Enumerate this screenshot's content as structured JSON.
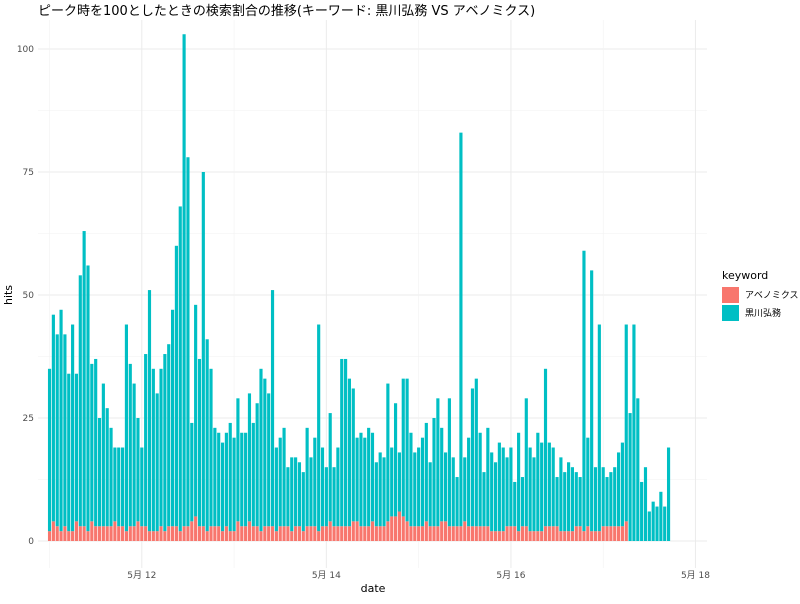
{
  "chart_data": {
    "type": "bar",
    "title": "ピーク時を100としたときの検索割合の推移(キーワード: 黒川弘務 VS アベノミクス)",
    "xlabel": "date",
    "ylabel": "hits",
    "ylim": [
      0,
      100
    ],
    "y_ticks": [
      0,
      25,
      50,
      75,
      100
    ],
    "x_tick_labels": [
      "5月 12",
      "5月 14",
      "5月 16",
      "5月 18"
    ],
    "x_ticks": [
      "2020-05-12",
      "2020-05-14",
      "2020-05-16",
      "2020-05-18"
    ],
    "x_range": [
      "2020-05-10T21:00",
      "2020-05-18T03:00"
    ],
    "grid": true,
    "legend": {
      "title": "keyword",
      "position": "right"
    },
    "bar_interval_hours": 1,
    "first_bar_time": "2020-05-11T00:00",
    "series": [
      {
        "name": "アベノミクス",
        "color": "#F8766D",
        "values": [
          2,
          4,
          3,
          2,
          3,
          2,
          2,
          4,
          3,
          3,
          2,
          4,
          3,
          3,
          3,
          3,
          3,
          4,
          3,
          3,
          2,
          3,
          3,
          4,
          3,
          3,
          2,
          2,
          2,
          3,
          2,
          3,
          3,
          3,
          2,
          3,
          3,
          4,
          5,
          3,
          3,
          2,
          3,
          3,
          3,
          2,
          3,
          2,
          2,
          4,
          3,
          3,
          4,
          3,
          3,
          2,
          3,
          3,
          3,
          2,
          3,
          3,
          3,
          2,
          3,
          3,
          2,
          3,
          3,
          3,
          2,
          3,
          3,
          4,
          3,
          3,
          3,
          3,
          3,
          4,
          4,
          3,
          3,
          3,
          4,
          3,
          3,
          3,
          4,
          5,
          5,
          6,
          5,
          4,
          3,
          3,
          3,
          3,
          4,
          3,
          3,
          3,
          4,
          4,
          3,
          3,
          3,
          3,
          4,
          3,
          3,
          3,
          3,
          3,
          3,
          2,
          2,
          2,
          2,
          3,
          3,
          3,
          2,
          3,
          3,
          2,
          2,
          2,
          2,
          3,
          3,
          3,
          3,
          2,
          2,
          2,
          2,
          3,
          3,
          2,
          3,
          2,
          2,
          2,
          3,
          3,
          3,
          3,
          3,
          3,
          4
        ]
      },
      {
        "name": "黒川弘務",
        "color": "#00BFC4",
        "values": [
          33,
          42,
          39,
          45,
          39,
          32,
          42,
          30,
          51,
          60,
          54,
          32,
          34,
          22,
          29,
          24,
          20,
          15,
          16,
          16,
          42,
          33,
          29,
          21,
          16,
          35,
          49,
          33,
          28,
          32,
          36,
          37,
          44,
          57,
          66,
          100,
          75,
          20,
          43,
          34,
          72,
          39,
          32,
          20,
          19,
          18,
          19,
          22,
          19,
          25,
          19,
          19,
          26,
          21,
          25,
          33,
          30,
          27,
          48,
          17,
          18,
          20,
          12,
          15,
          14,
          13,
          12,
          20,
          14,
          18,
          42,
          16,
          12,
          22,
          12,
          16,
          34,
          34,
          30,
          27,
          17,
          19,
          18,
          20,
          18,
          13,
          15,
          14,
          28,
          14,
          23,
          12,
          28,
          29,
          19,
          15,
          16,
          18,
          20,
          13,
          22,
          26,
          19,
          14,
          26,
          14,
          10,
          80,
          13,
          18,
          28,
          30,
          19,
          11,
          20,
          16,
          14,
          18,
          17,
          14,
          16,
          9,
          20,
          10,
          26,
          17,
          15,
          20,
          18,
          32,
          17,
          16,
          10,
          15,
          12,
          14,
          13,
          11,
          10,
          57,
          18,
          53,
          13,
          42,
          12,
          10,
          11,
          12,
          15,
          17,
          40,
          26,
          44,
          29,
          12,
          15,
          6,
          8,
          7,
          10,
          7,
          19
        ]
      }
    ]
  }
}
